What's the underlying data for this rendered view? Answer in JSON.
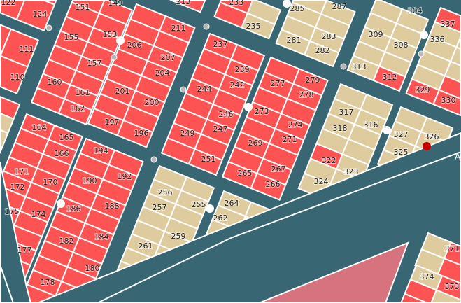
{
  "map": {
    "colors": {
      "road": "#386672",
      "lot_red": "#fd5352",
      "lot_tan": "#dfcc9e",
      "zone_pink": "#d7737f",
      "marker_red": "#c40000",
      "outline": "#ffffff"
    },
    "street_label": "A"
  },
  "lots": [
    {
      "id": "122",
      "color": "red"
    },
    {
      "id": "124",
      "color": "red"
    },
    {
      "id": "111",
      "color": "red"
    },
    {
      "id": "110",
      "color": "red"
    },
    {
      "id": "151",
      "color": "red"
    },
    {
      "id": "149",
      "color": "red"
    },
    {
      "id": "155",
      "color": "red"
    },
    {
      "id": "153",
      "color": "red"
    },
    {
      "id": "157",
      "color": "red"
    },
    {
      "id": "160",
      "color": "red"
    },
    {
      "id": "161",
      "color": "red"
    },
    {
      "id": "162",
      "color": "red"
    },
    {
      "id": "206",
      "color": "red"
    },
    {
      "id": "211",
      "color": "red"
    },
    {
      "id": "207",
      "color": "red"
    },
    {
      "id": "204",
      "color": "red"
    },
    {
      "id": "201",
      "color": "red"
    },
    {
      "id": "200",
      "color": "red"
    },
    {
      "id": "197",
      "color": "red"
    },
    {
      "id": "196",
      "color": "red"
    },
    {
      "id": "213",
      "color": "red"
    },
    {
      "id": "237",
      "color": "red"
    },
    {
      "id": "239",
      "color": "red"
    },
    {
      "id": "242",
      "color": "red"
    },
    {
      "id": "244",
      "color": "red"
    },
    {
      "id": "246",
      "color": "red"
    },
    {
      "id": "247",
      "color": "red"
    },
    {
      "id": "249",
      "color": "red"
    },
    {
      "id": "251",
      "color": "red"
    },
    {
      "id": "233",
      "color": "red"
    },
    {
      "id": "235",
      "color": "tan"
    },
    {
      "id": "285",
      "color": "tan"
    },
    {
      "id": "287",
      "color": "tan"
    },
    {
      "id": "281",
      "color": "tan"
    },
    {
      "id": "283",
      "color": "tan"
    },
    {
      "id": "282",
      "color": "tan"
    },
    {
      "id": "277",
      "color": "red"
    },
    {
      "id": "279",
      "color": "red"
    },
    {
      "id": "278",
      "color": "red"
    },
    {
      "id": "273",
      "color": "red"
    },
    {
      "id": "274",
      "color": "red"
    },
    {
      "id": "271",
      "color": "red"
    },
    {
      "id": "269",
      "color": "red"
    },
    {
      "id": "267",
      "color": "red"
    },
    {
      "id": "265",
      "color": "red"
    },
    {
      "id": "266",
      "color": "red"
    },
    {
      "id": "304",
      "color": "tan"
    },
    {
      "id": "309",
      "color": "tan"
    },
    {
      "id": "308",
      "color": "tan"
    },
    {
      "id": "313",
      "color": "tan"
    },
    {
      "id": "312",
      "color": "red"
    },
    {
      "id": "337",
      "color": "tan"
    },
    {
      "id": "336",
      "color": "tan"
    },
    {
      "id": "329",
      "color": "red"
    },
    {
      "id": "330",
      "color": "red"
    },
    {
      "id": "317",
      "color": "tan"
    },
    {
      "id": "318",
      "color": "tan"
    },
    {
      "id": "316",
      "color": "tan"
    },
    {
      "id": "327",
      "color": "tan"
    },
    {
      "id": "326",
      "color": "tan"
    },
    {
      "id": "325",
      "color": "tan"
    },
    {
      "id": "322",
      "color": "red"
    },
    {
      "id": "323",
      "color": "tan"
    },
    {
      "id": "324",
      "color": "tan"
    },
    {
      "id": "164",
      "color": "red"
    },
    {
      "id": "165",
      "color": "red"
    },
    {
      "id": "166",
      "color": "red"
    },
    {
      "id": "171",
      "color": "red"
    },
    {
      "id": "170",
      "color": "red"
    },
    {
      "id": "172",
      "color": "red"
    },
    {
      "id": "174",
      "color": "red"
    },
    {
      "id": "175",
      "color": "red"
    },
    {
      "id": "177",
      "color": "red"
    },
    {
      "id": "194",
      "color": "red"
    },
    {
      "id": "192",
      "color": "red"
    },
    {
      "id": "190",
      "color": "red"
    },
    {
      "id": "188",
      "color": "red"
    },
    {
      "id": "186",
      "color": "red"
    },
    {
      "id": "184",
      "color": "red"
    },
    {
      "id": "182",
      "color": "red"
    },
    {
      "id": "180",
      "color": "red"
    },
    {
      "id": "178",
      "color": "red"
    },
    {
      "id": "256",
      "color": "tan"
    },
    {
      "id": "257",
      "color": "tan"
    },
    {
      "id": "255",
      "color": "tan"
    },
    {
      "id": "259",
      "color": "tan"
    },
    {
      "id": "261",
      "color": "tan"
    },
    {
      "id": "264",
      "color": "tan"
    },
    {
      "id": "262",
      "color": "tan"
    },
    {
      "id": "371",
      "color": "red"
    },
    {
      "id": "374",
      "color": "tan"
    },
    {
      "id": "373",
      "color": "red"
    }
  ]
}
